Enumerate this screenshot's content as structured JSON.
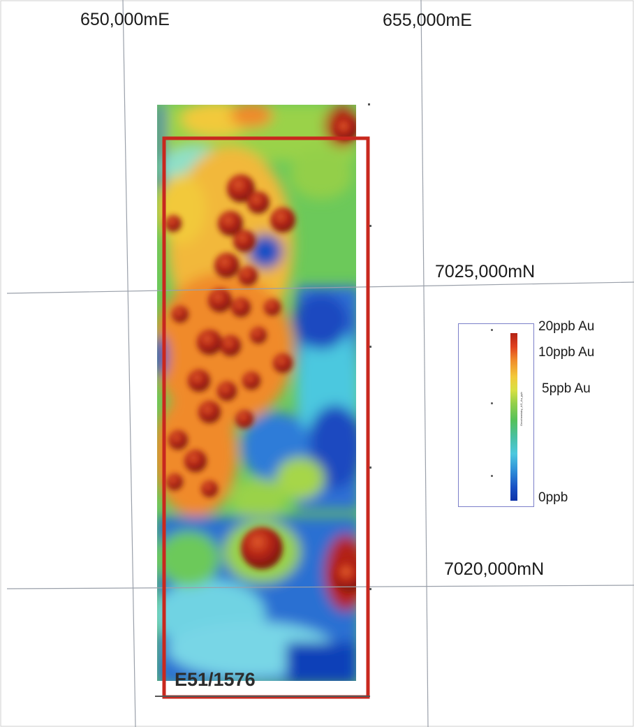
{
  "map": {
    "easting_labels": [
      "650,000mE",
      "655,000mE"
    ],
    "northing_labels": [
      "7025,000mN",
      "7020,000mN"
    ],
    "tenement_id": "E51/1576",
    "tenement_boundary_color": "#c8281e",
    "grid_line_color": "#9aa0aa"
  },
  "legend": {
    "labels": [
      "20ppb Au",
      "10ppb Au",
      "5ppb Au",
      "0ppb"
    ],
    "colors": [
      "#b32214",
      "#f08a2a",
      "#f2c93a",
      "#54c15a",
      "#4cc8df",
      "#0f33a8"
    ],
    "caption": "Geochemistry_AG_Au_ppb"
  }
}
